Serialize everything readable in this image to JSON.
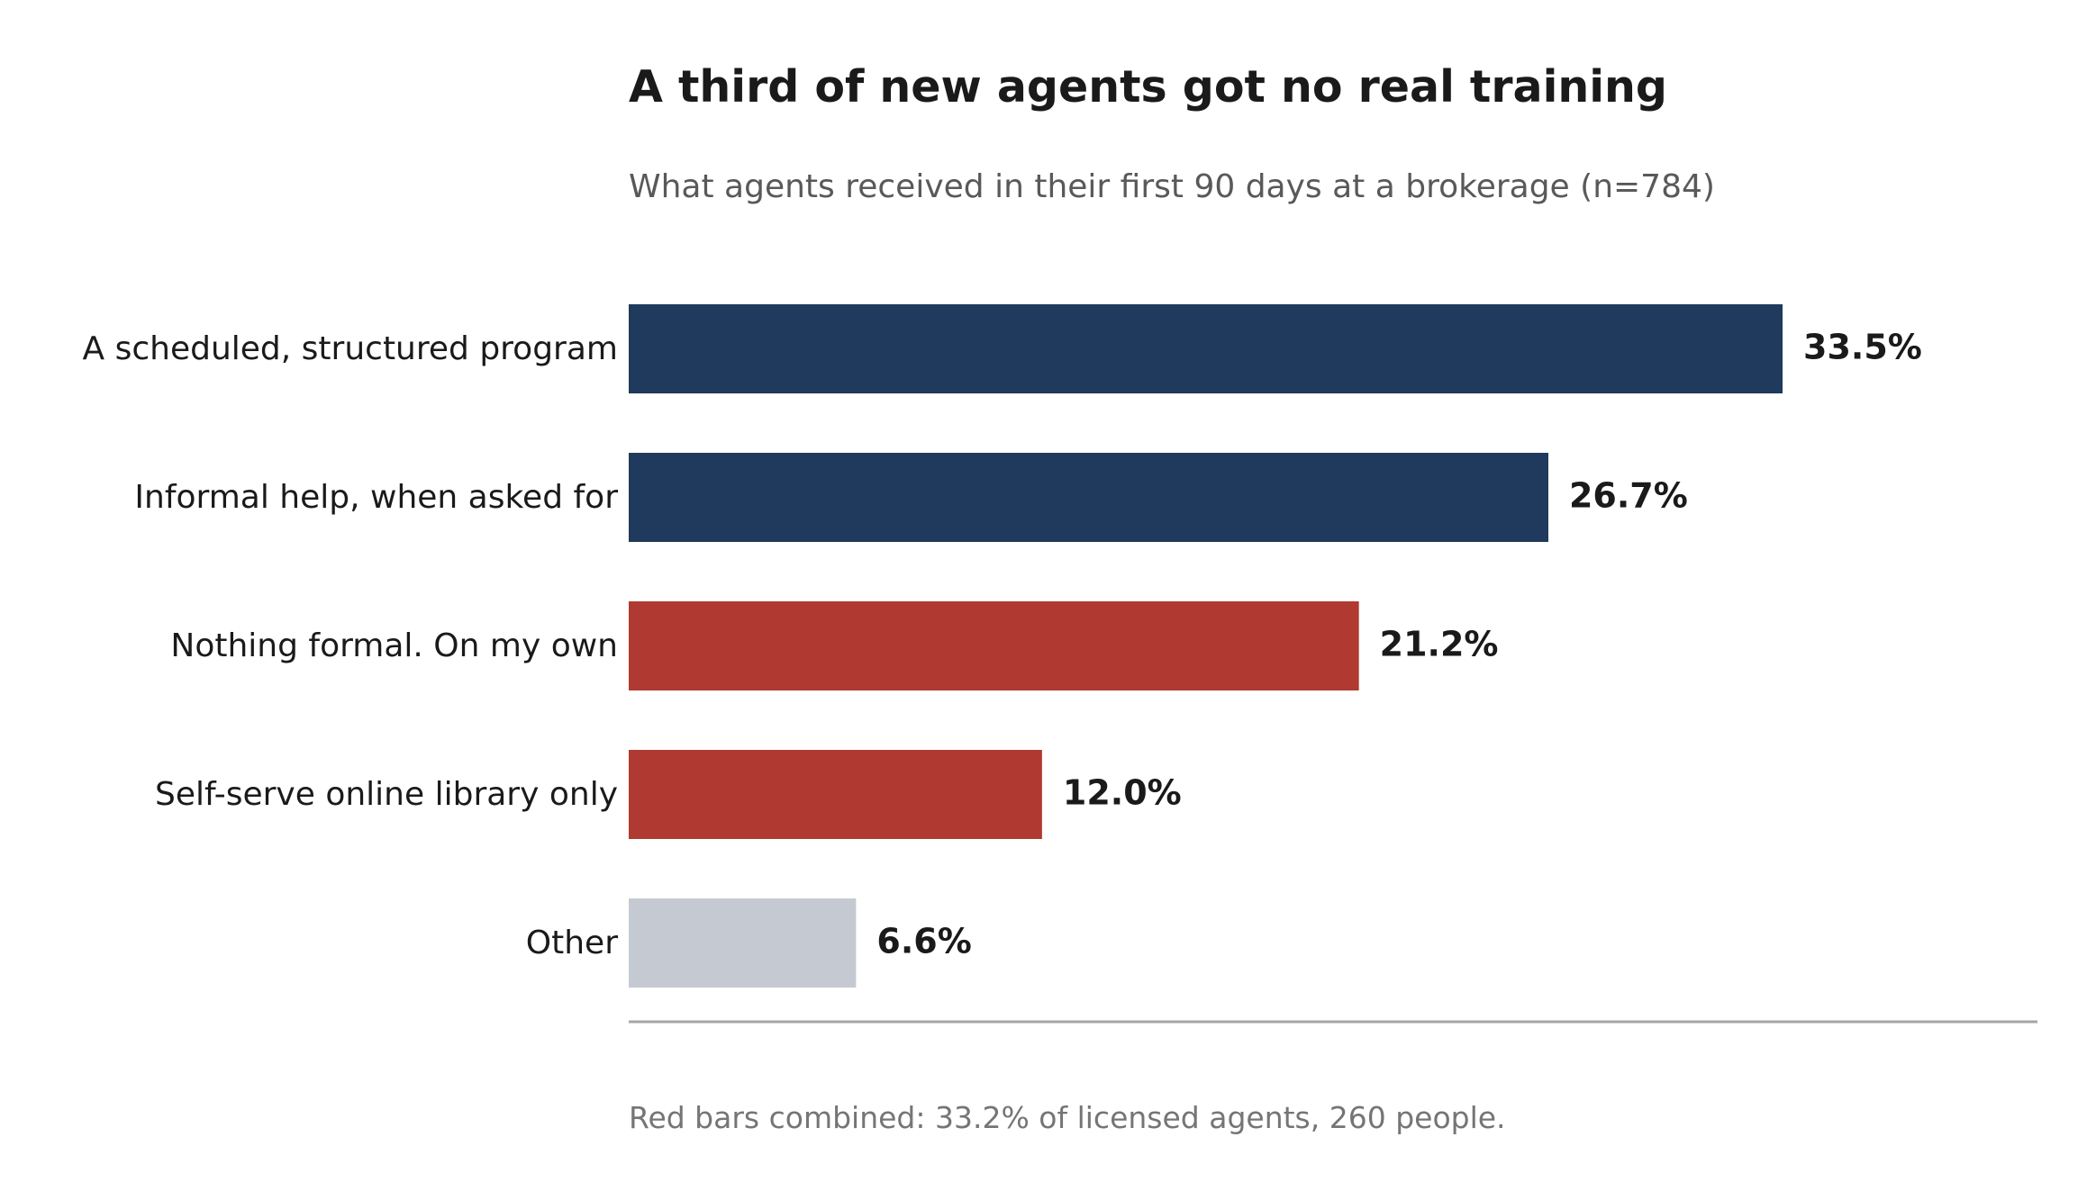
{
  "chart_data": {
    "type": "bar",
    "orientation": "horizontal",
    "title": "A third of new agents got no real training",
    "subtitle": "What agents received in their first 90 days at a brokerage (n=784)",
    "categories": [
      "A scheduled, structured program",
      "Informal help, when asked for",
      "Nothing formal. On my own",
      "Self-serve online library only",
      "Other"
    ],
    "values": [
      33.5,
      26.7,
      21.2,
      12.0,
      6.6
    ],
    "value_labels": [
      "33.5%",
      "26.7%",
      "21.2%",
      "12.0%",
      "6.6%"
    ],
    "bar_colors": [
      "#1f3a5c",
      "#1f3a5c",
      "#b03a32",
      "#b03a32",
      "#c5cad2"
    ],
    "footnote": "Red bars combined: 33.2% of licensed agents, 260 people.",
    "xlim": [
      0,
      40.9
    ],
    "grid": false,
    "legend": "none"
  }
}
